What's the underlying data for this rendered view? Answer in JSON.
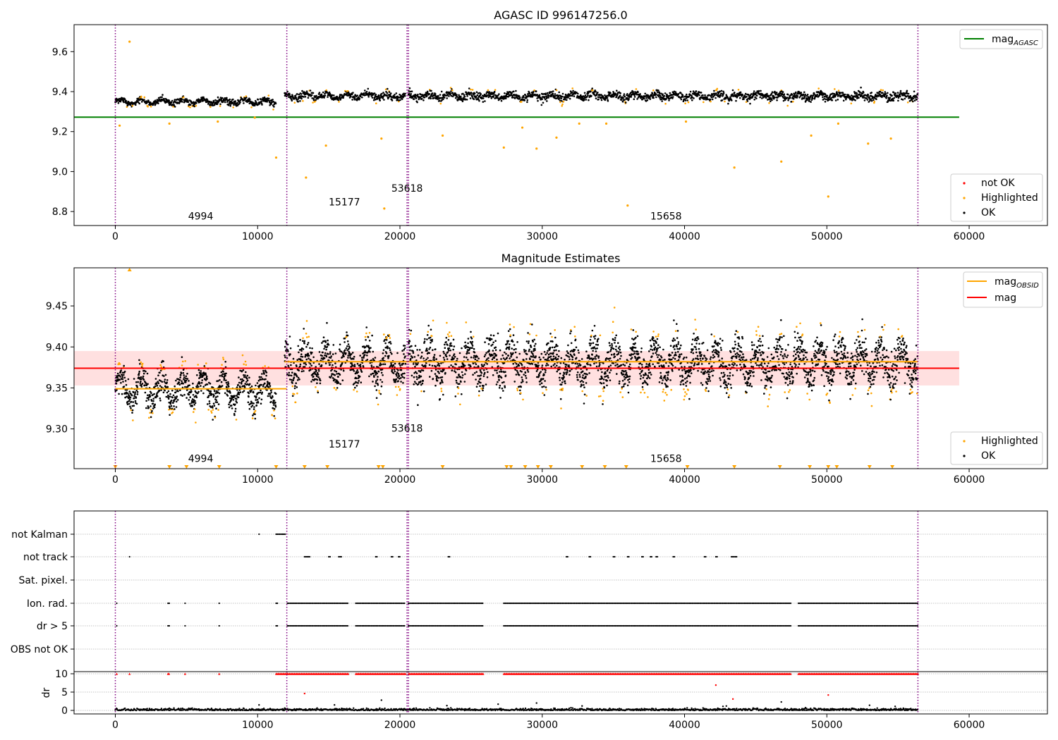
{
  "chart_data": [
    {
      "type": "scatter",
      "title": "AGASC ID 996147256.0",
      "xlim": [
        -2900,
        65500
      ],
      "ylim": [
        8.73,
        9.735
      ],
      "xticks": [
        0,
        10000,
        20000,
        30000,
        40000,
        50000,
        60000
      ],
      "yticks": [
        "8.8",
        "9.0",
        "9.2",
        "9.4",
        "9.6"
      ],
      "observations": [
        {
          "start": 0,
          "end": 11300,
          "level": 9.35,
          "spread": 0.012
        },
        {
          "start": 11900,
          "end": 20400,
          "level": 9.378,
          "spread": 0.014
        },
        {
          "start": 20600,
          "end": 56400,
          "level": 9.378,
          "spread": 0.016
        }
      ],
      "obs_boundaries": [
        0,
        12050,
        20500,
        20600,
        56400
      ],
      "obsid_labels": [
        {
          "text": "4994",
          "x": 6000,
          "y": 8.76
        },
        {
          "text": "15177",
          "x": 16100,
          "y": 8.83
        },
        {
          "text": "53618",
          "x": 20500,
          "y": 8.9
        },
        {
          "text": "15658",
          "x": 38700,
          "y": 8.76
        }
      ],
      "outliers": [
        [
          1000,
          9.65
        ],
        [
          11300,
          9.07
        ],
        [
          13400,
          8.97
        ],
        [
          14800,
          9.13
        ],
        [
          18700,
          9.165
        ],
        [
          18900,
          8.815
        ],
        [
          23000,
          9.18
        ],
        [
          27300,
          9.12
        ],
        [
          28600,
          9.22
        ],
        [
          29600,
          9.115
        ],
        [
          31000,
          9.17
        ],
        [
          32600,
          9.24
        ],
        [
          34500,
          9.24
        ],
        [
          36000,
          8.83
        ],
        [
          40100,
          9.25
        ],
        [
          43500,
          9.02
        ],
        [
          46800,
          9.05
        ],
        [
          48900,
          9.18
        ],
        [
          50100,
          8.875
        ],
        [
          50800,
          9.24
        ],
        [
          52900,
          9.14
        ],
        [
          54500,
          9.165
        ],
        [
          300,
          9.23
        ],
        [
          3800,
          9.24
        ],
        [
          7200,
          9.25
        ],
        [
          9800,
          9.27
        ]
      ],
      "reference_line": {
        "value": 9.272,
        "x_end": 59300,
        "color": "#008000"
      },
      "legend_top": [
        {
          "label": "mag",
          "sub": "AGASC",
          "color": "#008000"
        }
      ],
      "legend_bottom": [
        {
          "label": "not OK",
          "color": "#ff0000"
        },
        {
          "label": "Highlighted",
          "color": "#ffa500"
        },
        {
          "label": "OK",
          "color": "#000000"
        }
      ]
    },
    {
      "type": "scatter",
      "title": "Magnitude Estimates",
      "xlim": [
        -2900,
        65500
      ],
      "ylim": [
        9.2515,
        9.4965
      ],
      "xticks": [
        0,
        10000,
        20000,
        30000,
        40000,
        50000,
        60000
      ],
      "yticks": [
        "9.30",
        "9.35",
        "9.40",
        "9.45"
      ],
      "observations": [
        {
          "start": 0,
          "end": 11300,
          "level": 9.348,
          "spread": 0.01
        },
        {
          "start": 11900,
          "end": 20400,
          "level": 9.381,
          "spread": 0.012
        },
        {
          "start": 20600,
          "end": 56400,
          "level": 9.381,
          "spread": 0.013
        }
      ],
      "obs_boundaries": [
        0,
        12050,
        20500,
        20600,
        56400
      ],
      "obsid_labels": [
        {
          "text": "4994",
          "x": 6000,
          "y": 9.2595
        },
        {
          "text": "15177",
          "x": 16100,
          "y": 9.2775
        },
        {
          "text": "53618",
          "x": 20500,
          "y": 9.2965
        },
        {
          "text": "15658",
          "x": 38700,
          "y": 9.2595
        }
      ],
      "mag_obsid_segments": [
        {
          "start": 0,
          "end": 12050,
          "value": 9.349
        },
        {
          "start": 11900,
          "end": 56400,
          "value": 9.382
        }
      ],
      "mag_line": {
        "value": 9.374,
        "x_end": 59300,
        "band": [
          9.353,
          9.395
        ]
      },
      "offscale_x": [
        0,
        3800,
        5000,
        7300,
        11300,
        13300,
        14900,
        18500,
        18800,
        23000,
        27500,
        27800,
        28800,
        29700,
        30600,
        32800,
        34400,
        35900,
        40200,
        43500,
        46700,
        48800,
        50100,
        50700,
        53000,
        54600
      ],
      "legend_top": [
        {
          "label": "mag",
          "sub": "OBSID",
          "color": "#ffa500"
        },
        {
          "label": "mag",
          "sub": "",
          "color": "#ff0000"
        }
      ],
      "legend_bottom": [
        {
          "label": "Highlighted",
          "color": "#ffa500"
        },
        {
          "label": "OK",
          "color": "#000000"
        }
      ]
    },
    {
      "type": "scatter",
      "title": "",
      "xlim": [
        -2900,
        65500
      ],
      "flag_rows": [
        "not Kalman",
        "not track",
        "Sat. pixel.",
        "Ion. rad.",
        "dr > 5",
        "OBS not OK"
      ],
      "flag_points": {
        "not Kalman": [
          [
            10100,
            10100
          ],
          [
            11300,
            12000
          ]
        ],
        "not track": [
          [
            1000,
            1000
          ],
          [
            13300,
            13700
          ],
          [
            15000,
            15100
          ],
          [
            15700,
            15900
          ],
          [
            18300,
            18400
          ],
          [
            19400,
            19500
          ],
          [
            19900,
            20000
          ],
          [
            23400,
            23500
          ],
          [
            31700,
            31800
          ],
          [
            33300,
            33400
          ],
          [
            35000,
            35100
          ],
          [
            36000,
            36100
          ],
          [
            37000,
            37100
          ],
          [
            37600,
            37700
          ],
          [
            38000,
            38100
          ],
          [
            39200,
            39300
          ],
          [
            41400,
            41500
          ],
          [
            42200,
            42300
          ],
          [
            43300,
            43700
          ]
        ],
        "Sat. pixel.": [],
        "Ion. rad.": [
          [
            100,
            100
          ],
          [
            3700,
            3800
          ],
          [
            4900,
            4900
          ],
          [
            7300,
            7300
          ],
          [
            11300,
            11400
          ],
          [
            12100,
            16400
          ],
          [
            16900,
            20400
          ],
          [
            20600,
            25900
          ],
          [
            27300,
            47500
          ],
          [
            48000,
            56400
          ]
        ],
        "dr > 5": [
          [
            100,
            100
          ],
          [
            3700,
            3800
          ],
          [
            4900,
            4900
          ],
          [
            7300,
            7300
          ],
          [
            11300,
            11400
          ],
          [
            12100,
            16400
          ],
          [
            16900,
            20400
          ],
          [
            20600,
            25900
          ],
          [
            27300,
            47500
          ],
          [
            48000,
            56400
          ]
        ],
        "OBS not OK": []
      },
      "ylabel": "dr",
      "dr_yticks": [
        "0",
        "5",
        "10"
      ],
      "dr_segments": [
        [
          0,
          11300
        ],
        [
          11300,
          56400
        ]
      ],
      "dr_clipped_ranges": [
        [
          100,
          100
        ],
        [
          1000,
          1000
        ],
        [
          3700,
          3800
        ],
        [
          4900,
          4900
        ],
        [
          7300,
          7300
        ],
        [
          11300,
          12100
        ],
        [
          12100,
          16400
        ],
        [
          16900,
          20400
        ],
        [
          20600,
          25900
        ],
        [
          27300,
          47500
        ],
        [
          48000,
          56400
        ]
      ],
      "dr_outliers": [
        [
          13300,
          4.6
        ],
        [
          42200,
          6.9
        ],
        [
          43400,
          3.1
        ],
        [
          50100,
          4.2
        ],
        [
          18700,
          2.8
        ],
        [
          23300,
          1.3
        ],
        [
          26900,
          1.7
        ],
        [
          29600,
          2.0
        ],
        [
          32800,
          1.2
        ],
        [
          46800,
          2.3
        ],
        [
          53000,
          1.4
        ],
        [
          15400,
          1.5
        ],
        [
          42700,
          1.1
        ],
        [
          54800,
          1.1
        ],
        [
          10100,
          1.5
        ]
      ],
      "xticks": [
        0,
        10000,
        20000,
        30000,
        40000,
        50000,
        60000
      ]
    }
  ]
}
